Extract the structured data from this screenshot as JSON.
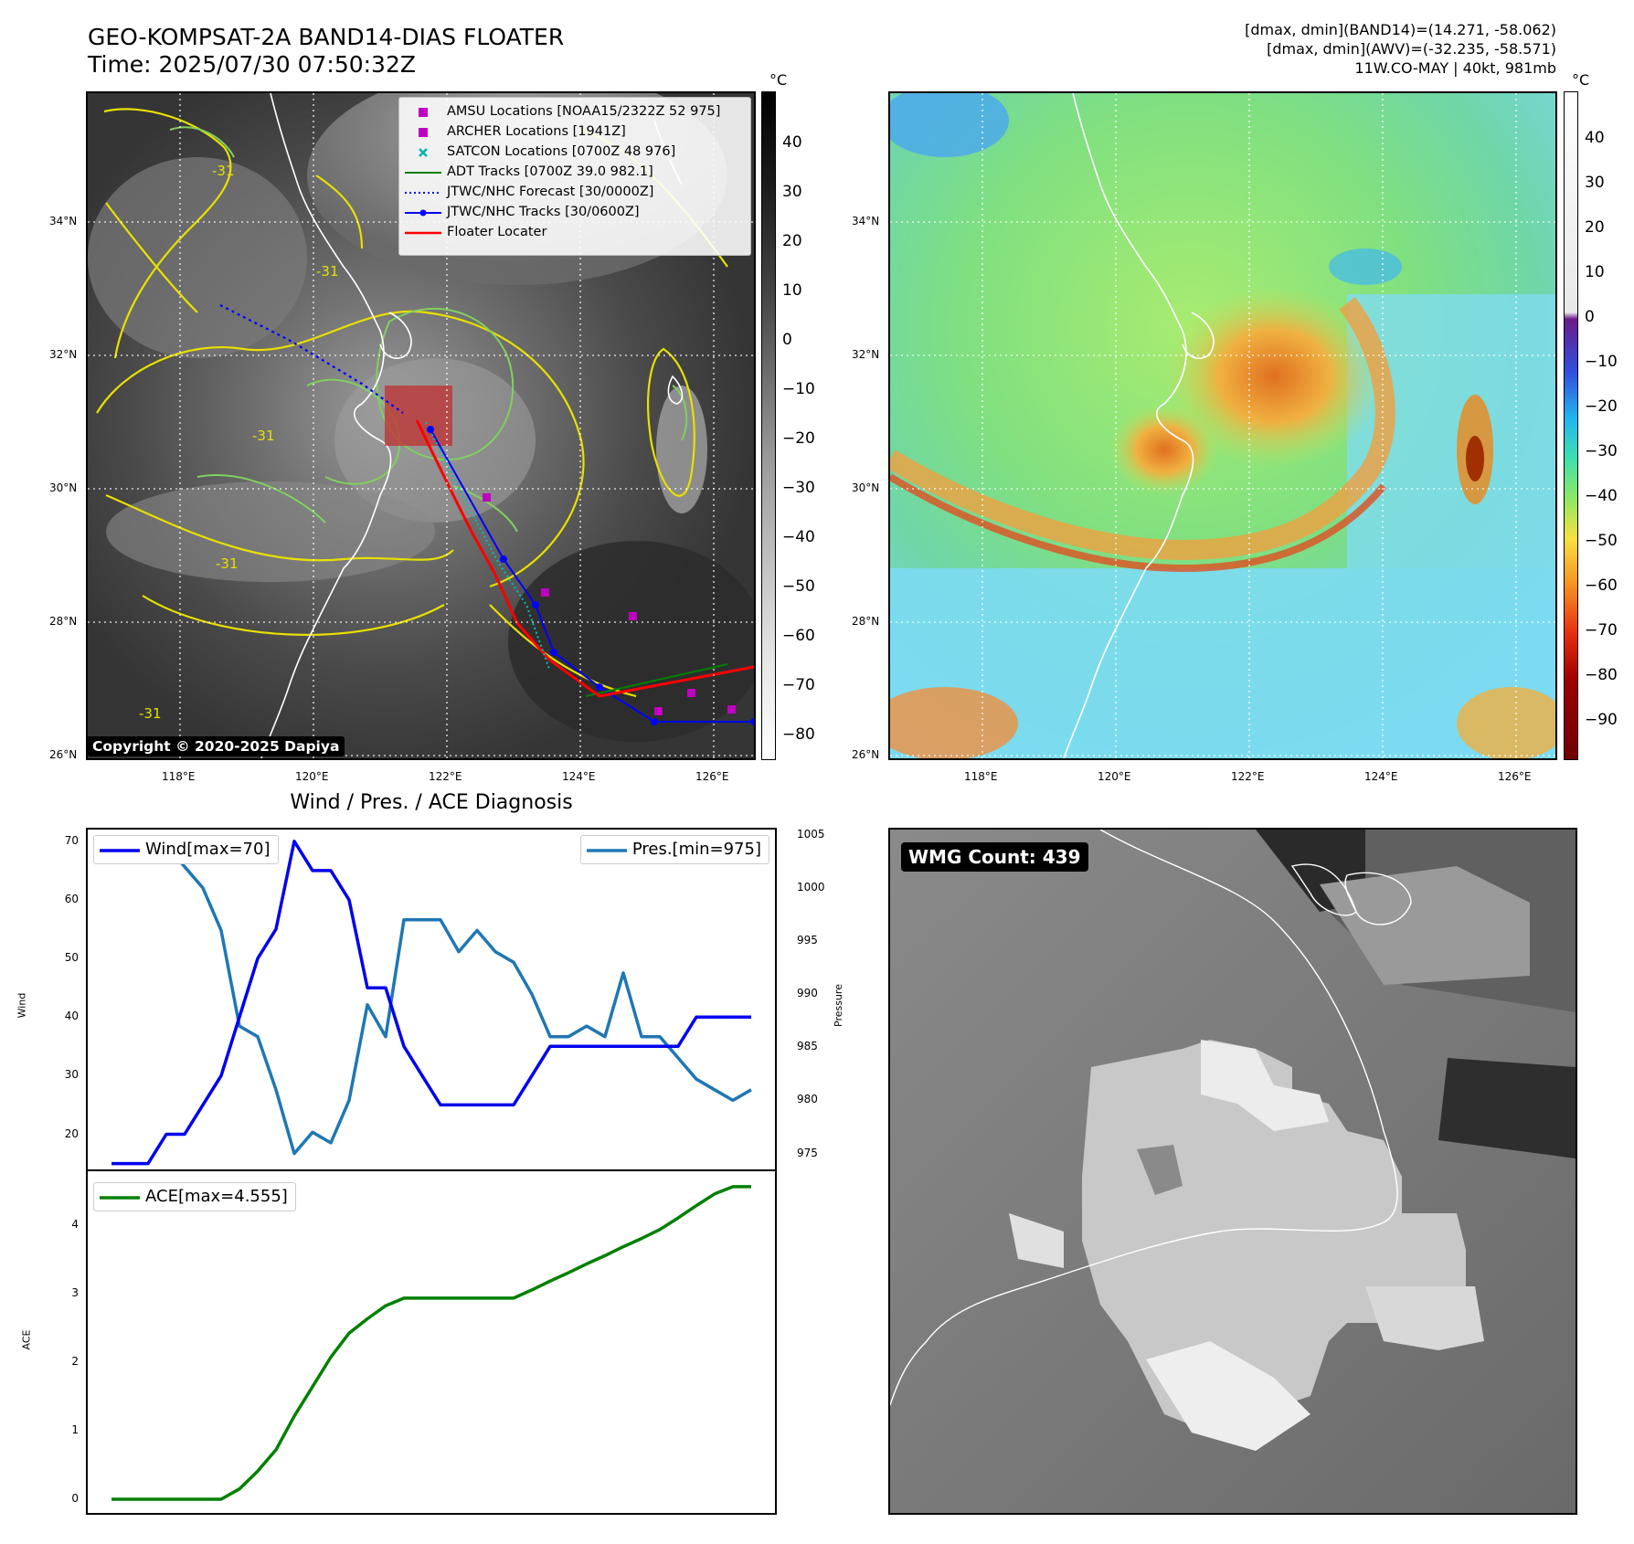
{
  "header": {
    "title_line1": "GEO-KOMPSAT-2A BAND14-DIAS FLOATER",
    "title_line2": "Time: 2025/07/30 07:50:32Z",
    "info_line1": "[dmax, dmin](BAND14)=(14.271, -58.062)",
    "info_line2": "[dmax, dmin](AWV)=(-32.235, -58.571)",
    "info_line3": "11W.CO-MAY | 40kt, 981mb"
  },
  "map": {
    "lat_labels": [
      "34°N",
      "32°N",
      "30°N",
      "28°N",
      "26°N"
    ],
    "lon_labels": [
      "118°E",
      "120°E",
      "122°E",
      "124°E",
      "126°E"
    ],
    "contour_label": "-31",
    "copyright": "Copyright © 2020-2025 Dapiya",
    "legend": [
      {
        "label": "AMSU Locations [NOAA15/2322Z 52 975]",
        "symbol": "square",
        "color": "#c000c0"
      },
      {
        "label": "ARCHER Locations [1941Z]",
        "symbol": "square",
        "color": "#c000c0"
      },
      {
        "label": "SATCON Locations [0700Z 48 976]",
        "symbol": "x",
        "color": "#00b0b0"
      },
      {
        "label": "ADT Tracks [0700Z 39.0 982.1]",
        "symbol": "line",
        "color": "#008000"
      },
      {
        "label": "JTWC/NHC Forecast [30/0000Z]",
        "symbol": "dotted",
        "color": "#0000ff"
      },
      {
        "label": "JTWC/NHC Tracks [30/0600Z]",
        "symbol": "line-dot",
        "color": "#0000ff"
      },
      {
        "label": "Floater Locater",
        "symbol": "line",
        "color": "#ff0000"
      }
    ],
    "colorbar_gray": {
      "unit": "°C",
      "ticks": [
        "40",
        "30",
        "20",
        "10",
        "0",
        "−10",
        "−20",
        "−30",
        "−40",
        "−50",
        "−60",
        "−70",
        "−80"
      ]
    },
    "colorbar_color": {
      "unit": "°C",
      "ticks": [
        "40",
        "30",
        "20",
        "10",
        "0",
        "−10",
        "−20",
        "−30",
        "−40",
        "−50",
        "−60",
        "−70",
        "−80",
        "−90"
      ]
    }
  },
  "wmg": {
    "label": "WMG Count: 439"
  },
  "chart_data": [
    {
      "type": "line",
      "title": "Wind / Pres. / ACE Diagnosis",
      "ylabel": "Wind",
      "ylabel_right": "Pressure",
      "ylim": [
        14,
        72
      ],
      "ylim_right": [
        973.5,
        1005.5
      ],
      "yticks": [
        20,
        30,
        40,
        50,
        60,
        70
      ],
      "yticks_right": [
        975,
        980,
        985,
        990,
        995,
        1000,
        1005
      ],
      "series": [
        {
          "name": "Wind[max=70]",
          "color": "#0000ee",
          "axis": "left",
          "x": [
            0,
            2,
            3,
            4,
            5,
            6,
            7,
            8,
            9,
            10,
            11,
            12,
            13,
            14,
            15,
            16,
            17,
            18,
            19,
            20,
            21,
            22,
            23,
            24,
            25,
            26,
            27,
            28,
            29,
            30,
            31,
            32,
            33,
            34,
            35
          ],
          "values": [
            15,
            15,
            20,
            20,
            25,
            30,
            40,
            50,
            55,
            70,
            65,
            65,
            60,
            45,
            45,
            35,
            30,
            25,
            25,
            25,
            25,
            25,
            30,
            35,
            35,
            35,
            35,
            35,
            35,
            35,
            35,
            40,
            40,
            40,
            40
          ]
        },
        {
          "name": "Pres.[min=975]",
          "color": "#1f77b4",
          "axis": "right",
          "x": [
            0,
            1,
            2,
            3,
            4,
            5,
            6,
            7,
            8,
            9,
            10,
            11,
            12,
            13,
            14,
            15,
            16,
            17,
            18,
            19,
            20,
            21,
            22,
            23,
            24,
            25,
            26,
            27,
            28,
            29,
            30,
            31,
            32,
            33,
            34,
            35
          ],
          "values": [
            1004,
            1004,
            1004,
            1004,
            1002,
            1000,
            996,
            987,
            986,
            981,
            975,
            977,
            976,
            980,
            989,
            986,
            997,
            997,
            997,
            994,
            996,
            994,
            993,
            990,
            986,
            986,
            987,
            986,
            992,
            986,
            986,
            984,
            982,
            981,
            980,
            981
          ]
        }
      ]
    },
    {
      "type": "line",
      "ylabel": "ACE",
      "ylim": [
        -0.2,
        4.78
      ],
      "yticks": [
        0,
        1,
        2,
        3,
        4
      ],
      "series": [
        {
          "name": "ACE[max=4.555]",
          "color": "#008000",
          "x": [
            0,
            1,
            2,
            3,
            4,
            5,
            6,
            7,
            8,
            9,
            10,
            11,
            12,
            13,
            14,
            15,
            16,
            17,
            18,
            19,
            20,
            21,
            22,
            23,
            24,
            25,
            26,
            27,
            28,
            29,
            30,
            31,
            32,
            33,
            34,
            35
          ],
          "values": [
            0,
            0,
            0,
            0,
            0,
            0,
            0,
            0.15,
            0.41,
            0.72,
            1.21,
            1.64,
            2.07,
            2.42,
            2.63,
            2.82,
            2.93,
            2.93,
            2.93,
            2.93,
            2.93,
            2.93,
            2.93,
            3.05,
            3.18,
            3.3,
            3.43,
            3.55,
            3.68,
            3.8,
            3.93,
            4.1,
            4.28,
            4.45,
            4.555,
            4.555
          ]
        }
      ]
    }
  ]
}
